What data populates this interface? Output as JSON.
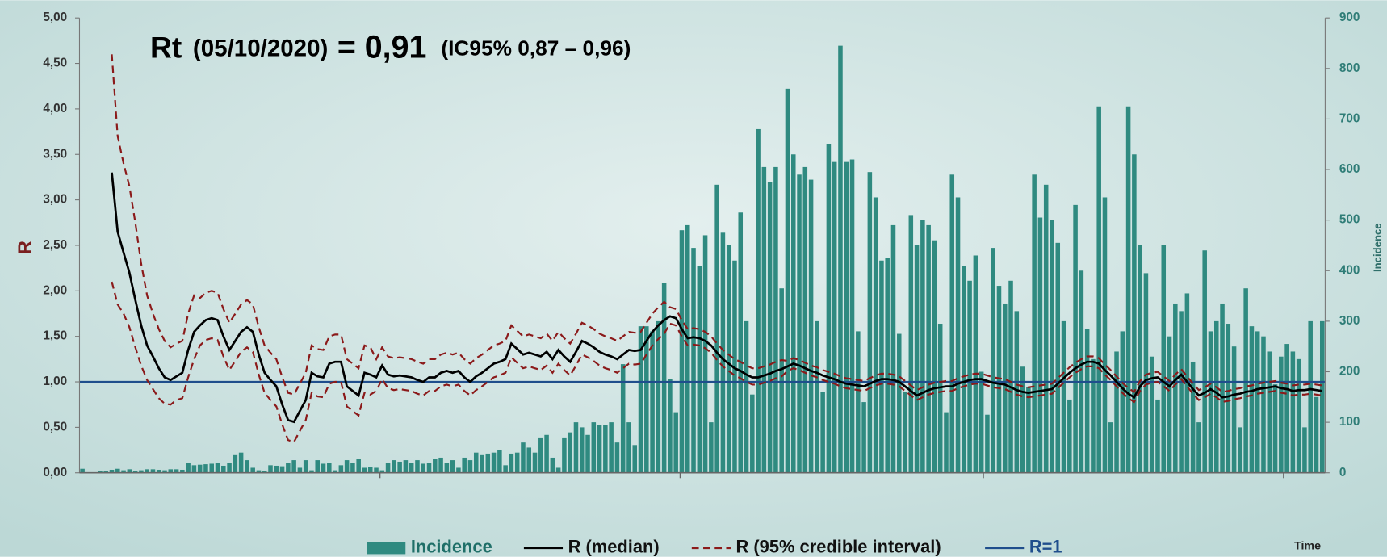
{
  "chart_data": {
    "type": "bar_line",
    "title": {
      "parts": [
        "Rt",
        "(05/10/2020)",
        "= 0,91",
        "(IC95%  0,87 – 0,96)"
      ]
    },
    "ylabel": "R",
    "y2label": "Incidence",
    "xlabel": "Time",
    "categories": [
      null,
      null,
      null,
      null,
      null,
      null,
      null,
      null,
      null,
      null,
      null,
      null,
      null,
      null,
      null,
      null,
      null,
      null,
      null,
      null,
      null,
      null,
      null,
      null,
      null,
      null,
      null,
      null,
      null,
      null,
      null,
      null,
      null,
      null,
      null,
      null,
      null,
      null,
      null,
      null,
      null,
      null,
      null,
      null,
      null,
      null,
      null,
      null,
      null,
      null,
      null,
      null,
      null,
      null,
      null,
      null,
      null,
      null,
      null,
      null,
      null,
      null,
      null,
      null,
      null,
      null,
      null,
      null,
      null,
      null,
      null,
      null,
      null,
      null,
      null,
      null,
      null,
      null,
      null,
      null,
      null,
      null,
      null,
      null,
      null,
      null,
      null,
      null,
      null,
      null,
      null,
      null,
      null,
      null,
      null,
      null,
      null,
      null,
      null,
      null,
      null,
      null,
      null,
      null,
      null,
      null,
      null,
      null,
      null,
      null,
      null,
      null,
      null,
      null,
      null,
      null,
      null,
      null,
      null,
      null,
      null,
      null,
      null,
      null,
      null,
      null,
      null,
      null,
      null,
      null,
      null,
      null,
      null,
      null,
      null,
      null,
      null,
      null,
      null,
      null,
      null,
      null,
      null,
      null,
      null,
      null,
      null,
      null,
      null,
      null,
      null,
      null,
      null,
      null,
      null,
      null,
      null,
      null,
      null,
      null,
      null,
      null,
      null,
      null,
      null,
      null,
      null,
      null,
      null,
      null,
      null,
      null,
      null,
      null,
      null,
      null,
      null,
      null,
      null,
      null,
      null,
      null,
      null,
      null,
      null,
      null,
      null,
      null,
      null,
      null,
      null,
      null,
      null,
      null,
      null,
      null,
      null,
      null,
      null,
      null,
      null,
      null,
      null,
      null,
      null,
      null,
      null,
      null,
      null,
      null,
      null,
      null
    ],
    "ylim": [
      0,
      5
    ],
    "yticks": [
      {
        "value": 0,
        "label": "0,00"
      },
      {
        "value": 0.5,
        "label": "0,50"
      },
      {
        "value": 1,
        "label": "1,00"
      },
      {
        "value": 1.5,
        "label": "1,50"
      },
      {
        "value": 2,
        "label": "2,00"
      },
      {
        "value": 2.5,
        "label": "2,50"
      },
      {
        "value": 3,
        "label": "3,00"
      },
      {
        "value": 3.5,
        "label": "3,50"
      },
      {
        "value": 4,
        "label": "4,00"
      },
      {
        "value": 4.5,
        "label": "4,50"
      },
      {
        "value": 5,
        "label": "5,00"
      }
    ],
    "y2lim": [
      0,
      900
    ],
    "y2ticks": [
      0,
      100,
      200,
      300,
      400,
      500,
      600,
      700,
      800,
      900
    ],
    "series": [
      {
        "name": "Incidence",
        "kind": "bar",
        "axis": "y2",
        "color": "#2f8a80",
        "values": [
          8,
          0,
          0,
          3,
          4,
          6,
          8,
          5,
          7,
          4,
          5,
          7,
          7,
          6,
          5,
          7,
          7,
          6,
          20,
          15,
          16,
          17,
          18,
          20,
          14,
          20,
          35,
          40,
          25,
          10,
          5,
          3,
          15,
          14,
          13,
          20,
          25,
          10,
          25,
          5,
          25,
          18,
          20,
          5,
          15,
          25,
          20,
          28,
          10,
          12,
          10,
          5,
          20,
          25,
          22,
          25,
          20,
          25,
          18,
          20,
          28,
          30,
          20,
          25,
          10,
          30,
          25,
          40,
          35,
          38,
          40,
          45,
          15,
          38,
          40,
          60,
          50,
          40,
          70,
          75,
          30,
          10,
          70,
          80,
          100,
          90,
          75,
          100,
          95,
          95,
          100,
          60,
          215,
          100,
          55,
          290,
          290,
          280,
          300,
          375,
          185,
          120,
          480,
          490,
          445,
          410,
          470,
          100,
          570,
          475,
          450,
          420,
          515,
          300,
          155,
          680,
          605,
          575,
          605,
          365,
          760,
          630,
          590,
          605,
          580,
          300,
          160,
          650,
          615,
          845,
          615,
          620,
          280,
          140,
          595,
          545,
          420,
          425,
          490,
          275,
          160,
          510,
          450,
          500,
          490,
          460,
          295,
          120,
          590,
          545,
          410,
          380,
          430,
          200,
          115,
          445,
          370,
          335,
          380,
          320,
          210,
          170,
          590,
          505,
          570,
          500,
          455,
          300,
          145,
          530,
          400,
          285,
          225,
          725,
          545,
          100,
          240,
          280,
          725,
          630,
          450,
          395,
          230,
          145,
          450,
          270,
          335,
          320,
          355,
          220,
          100,
          440,
          280,
          300,
          335,
          295,
          250,
          90,
          365,
          290,
          280,
          270,
          240,
          175,
          230,
          255,
          240,
          225,
          90,
          300,
          150,
          300
        ]
      },
      {
        "name": "R (median)",
        "kind": "line",
        "color": "#000000",
        "values": [
          null,
          null,
          null,
          null,
          null,
          3.3,
          2.65,
          2.42,
          2.2,
          1.9,
          1.62,
          1.4,
          1.28,
          1.15,
          1.05,
          1.02,
          1.06,
          1.1,
          1.35,
          1.55,
          1.62,
          1.68,
          1.7,
          1.68,
          1.5,
          1.35,
          1.45,
          1.55,
          1.6,
          1.55,
          1.3,
          1.1,
          1.02,
          0.95,
          0.75,
          0.58,
          0.56,
          0.68,
          0.8,
          1.1,
          1.06,
          1.05,
          1.2,
          1.22,
          1.22,
          0.95,
          0.9,
          0.85,
          1.1,
          1.08,
          1.05,
          1.18,
          1.08,
          1.06,
          1.07,
          1.06,
          1.05,
          1.02,
          1.0,
          1.05,
          1.05,
          1.1,
          1.12,
          1.1,
          1.12,
          1.05,
          1.0,
          1.06,
          1.1,
          1.15,
          1.2,
          1.22,
          1.25,
          1.42,
          1.36,
          1.3,
          1.32,
          1.3,
          1.28,
          1.33,
          1.25,
          1.35,
          1.28,
          1.22,
          1.33,
          1.45,
          1.42,
          1.38,
          1.33,
          1.3,
          1.28,
          1.25,
          1.3,
          1.35,
          1.34,
          1.35,
          1.45,
          1.55,
          1.62,
          1.68,
          1.72,
          1.7,
          1.58,
          1.48,
          1.49,
          1.48,
          1.45,
          1.4,
          1.32,
          1.25,
          1.2,
          1.15,
          1.12,
          1.08,
          1.05,
          1.05,
          1.07,
          1.09,
          1.12,
          1.14,
          1.17,
          1.2,
          1.18,
          1.15,
          1.12,
          1.1,
          1.07,
          1.05,
          1.03,
          1.0,
          0.98,
          0.97,
          0.96,
          0.95,
          0.98,
          1.01,
          1.03,
          1.03,
          1.02,
          1.0,
          0.95,
          0.9,
          0.85,
          0.88,
          0.91,
          0.93,
          0.94,
          0.95,
          0.95,
          0.98,
          1.0,
          1.02,
          1.03,
          1.03,
          1.01,
          0.99,
          0.98,
          0.97,
          0.94,
          0.91,
          0.89,
          0.88,
          0.89,
          0.9,
          0.91,
          0.92,
          0.98,
          1.04,
          1.1,
          1.15,
          1.19,
          1.22,
          1.22,
          1.2,
          1.13,
          1.07,
          1.0,
          0.93,
          0.87,
          0.83,
          0.95,
          1.02,
          1.04,
          1.05,
          1.0,
          0.95,
          1.02,
          1.08,
          1.0,
          0.92,
          0.85,
          0.88,
          0.92,
          0.88,
          0.83,
          0.84,
          0.86,
          0.87,
          0.89,
          0.9,
          0.92,
          0.93,
          0.94,
          0.95,
          0.93,
          0.92,
          0.9,
          0.91,
          0.91,
          0.92,
          0.91,
          0.9
        ]
      },
      {
        "name": "R (95% credible interval)",
        "kind": "band-dashed",
        "color": "#8b1a1a",
        "upper": [
          null,
          null,
          null,
          null,
          null,
          4.6,
          3.7,
          3.4,
          3.15,
          2.75,
          2.3,
          1.95,
          1.75,
          1.58,
          1.45,
          1.38,
          1.42,
          1.45,
          1.75,
          1.95,
          1.92,
          1.98,
          2.0,
          1.98,
          1.8,
          1.65,
          1.75,
          1.85,
          1.9,
          1.85,
          1.6,
          1.4,
          1.32,
          1.25,
          1.05,
          0.88,
          0.86,
          0.98,
          1.1,
          1.4,
          1.36,
          1.35,
          1.5,
          1.52,
          1.52,
          1.25,
          1.2,
          1.15,
          1.4,
          1.38,
          1.25,
          1.38,
          1.28,
          1.26,
          1.27,
          1.26,
          1.25,
          1.22,
          1.2,
          1.25,
          1.25,
          1.3,
          1.32,
          1.3,
          1.32,
          1.25,
          1.2,
          1.26,
          1.3,
          1.35,
          1.4,
          1.42,
          1.45,
          1.62,
          1.56,
          1.5,
          1.52,
          1.5,
          1.48,
          1.53,
          1.45,
          1.55,
          1.48,
          1.42,
          1.53,
          1.65,
          1.62,
          1.58,
          1.53,
          1.5,
          1.48,
          1.45,
          1.5,
          1.55,
          1.54,
          1.55,
          1.65,
          1.75,
          1.82,
          1.88,
          1.82,
          1.8,
          1.68,
          1.58,
          1.59,
          1.58,
          1.55,
          1.5,
          1.42,
          1.35,
          1.3,
          1.25,
          1.22,
          1.18,
          1.15,
          1.15,
          1.17,
          1.19,
          1.22,
          1.24,
          1.23,
          1.26,
          1.24,
          1.21,
          1.18,
          1.16,
          1.13,
          1.11,
          1.09,
          1.06,
          1.04,
          1.03,
          1.02,
          1.01,
          1.04,
          1.07,
          1.09,
          1.09,
          1.08,
          1.06,
          1.01,
          0.96,
          0.91,
          0.94,
          0.97,
          0.99,
          1.0,
          1.01,
          1.01,
          1.04,
          1.06,
          1.08,
          1.09,
          1.09,
          1.07,
          1.05,
          1.04,
          1.03,
          1.0,
          0.97,
          0.95,
          0.94,
          0.95,
          0.96,
          0.97,
          0.98,
          1.04,
          1.1,
          1.16,
          1.21,
          1.25,
          1.28,
          1.28,
          1.26,
          1.19,
          1.13,
          1.06,
          0.99,
          0.93,
          0.89,
          1.01,
          1.08,
          1.1,
          1.11,
          1.06,
          1.01,
          1.08,
          1.14,
          1.06,
          0.98,
          0.91,
          0.94,
          0.98,
          0.94,
          0.89,
          0.9,
          0.92,
          0.93,
          0.95,
          0.96,
          0.98,
          0.99,
          1.0,
          1.01,
          0.99,
          0.98,
          0.96,
          0.97,
          0.97,
          0.98,
          0.97,
          0.96
        ],
        "lower": [
          null,
          null,
          null,
          null,
          null,
          2.1,
          1.85,
          1.75,
          1.6,
          1.38,
          1.18,
          1.02,
          0.92,
          0.82,
          0.76,
          0.75,
          0.8,
          0.82,
          1.05,
          1.25,
          1.4,
          1.46,
          1.48,
          1.46,
          1.28,
          1.13,
          1.23,
          1.33,
          1.38,
          1.33,
          1.08,
          0.88,
          0.8,
          0.73,
          0.53,
          0.36,
          0.34,
          0.46,
          0.58,
          0.88,
          0.84,
          0.83,
          0.98,
          1.0,
          1.0,
          0.73,
          0.68,
          0.63,
          0.88,
          0.86,
          0.9,
          1.03,
          0.93,
          0.91,
          0.92,
          0.91,
          0.9,
          0.87,
          0.85,
          0.9,
          0.9,
          0.95,
          0.97,
          0.95,
          0.97,
          0.9,
          0.85,
          0.91,
          0.95,
          1.0,
          1.05,
          1.07,
          1.1,
          1.27,
          1.21,
          1.15,
          1.17,
          1.15,
          1.13,
          1.18,
          1.1,
          1.2,
          1.13,
          1.07,
          1.18,
          1.3,
          1.27,
          1.23,
          1.18,
          1.15,
          1.13,
          1.1,
          1.15,
          1.2,
          1.19,
          1.2,
          1.3,
          1.4,
          1.47,
          1.53,
          1.64,
          1.62,
          1.5,
          1.4,
          1.41,
          1.4,
          1.37,
          1.32,
          1.24,
          1.17,
          1.12,
          1.07,
          1.04,
          1.0,
          0.97,
          0.97,
          0.99,
          1.01,
          1.04,
          1.06,
          1.12,
          1.15,
          1.13,
          1.1,
          1.07,
          1.05,
          1.02,
          1.0,
          0.98,
          0.95,
          0.93,
          0.92,
          0.91,
          0.9,
          0.93,
          0.96,
          0.98,
          0.98,
          0.97,
          0.95,
          0.9,
          0.85,
          0.8,
          0.83,
          0.86,
          0.88,
          0.89,
          0.9,
          0.9,
          0.93,
          0.95,
          0.97,
          0.98,
          0.98,
          0.96,
          0.94,
          0.93,
          0.92,
          0.89,
          0.86,
          0.84,
          0.83,
          0.84,
          0.85,
          0.86,
          0.87,
          0.93,
          0.99,
          1.05,
          1.1,
          1.14,
          1.17,
          1.17,
          1.15,
          1.08,
          1.02,
          0.95,
          0.88,
          0.82,
          0.78,
          0.9,
          0.97,
          0.99,
          1.0,
          0.95,
          0.9,
          0.97,
          1.03,
          0.95,
          0.87,
          0.8,
          0.83,
          0.87,
          0.83,
          0.78,
          0.79,
          0.81,
          0.82,
          0.84,
          0.85,
          0.87,
          0.88,
          0.89,
          0.9,
          0.88,
          0.87,
          0.85,
          0.86,
          0.86,
          0.87,
          0.86,
          0.85
        ]
      },
      {
        "name": "R=1",
        "kind": "reference",
        "color": "#1f4e8c",
        "value": 1
      }
    ]
  }
}
